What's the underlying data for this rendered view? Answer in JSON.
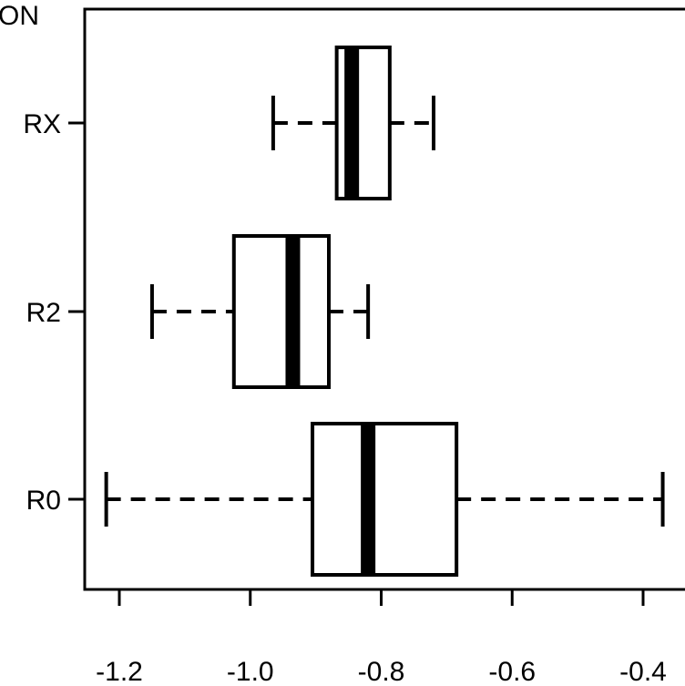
{
  "chart_data": {
    "type": "boxplot",
    "orientation": "horizontal",
    "title": "ON",
    "xlim": [
      -1.25,
      -0.36
    ],
    "xticks": [
      -1.2,
      -1.0,
      -0.8,
      -0.6,
      -0.4
    ],
    "xtick_labels": [
      "-1.2",
      "-1.0",
      "-0.8",
      "-0.6",
      "-0.4"
    ],
    "grid": false,
    "categories": [
      "R0",
      "R2",
      "RX"
    ],
    "boxes": [
      {
        "label": "R0",
        "whisker_low": -1.22,
        "q1": -0.905,
        "median": -0.82,
        "q3": -0.685,
        "whisker_high": -0.37
      },
      {
        "label": "R2",
        "whisker_low": -1.15,
        "q1": -1.025,
        "median": -0.935,
        "q3": -0.88,
        "whisker_high": -0.82
      },
      {
        "label": "RX",
        "whisker_low": -0.965,
        "q1": -0.868,
        "median": -0.845,
        "q3": -0.787,
        "whisker_high": -0.72
      }
    ]
  }
}
